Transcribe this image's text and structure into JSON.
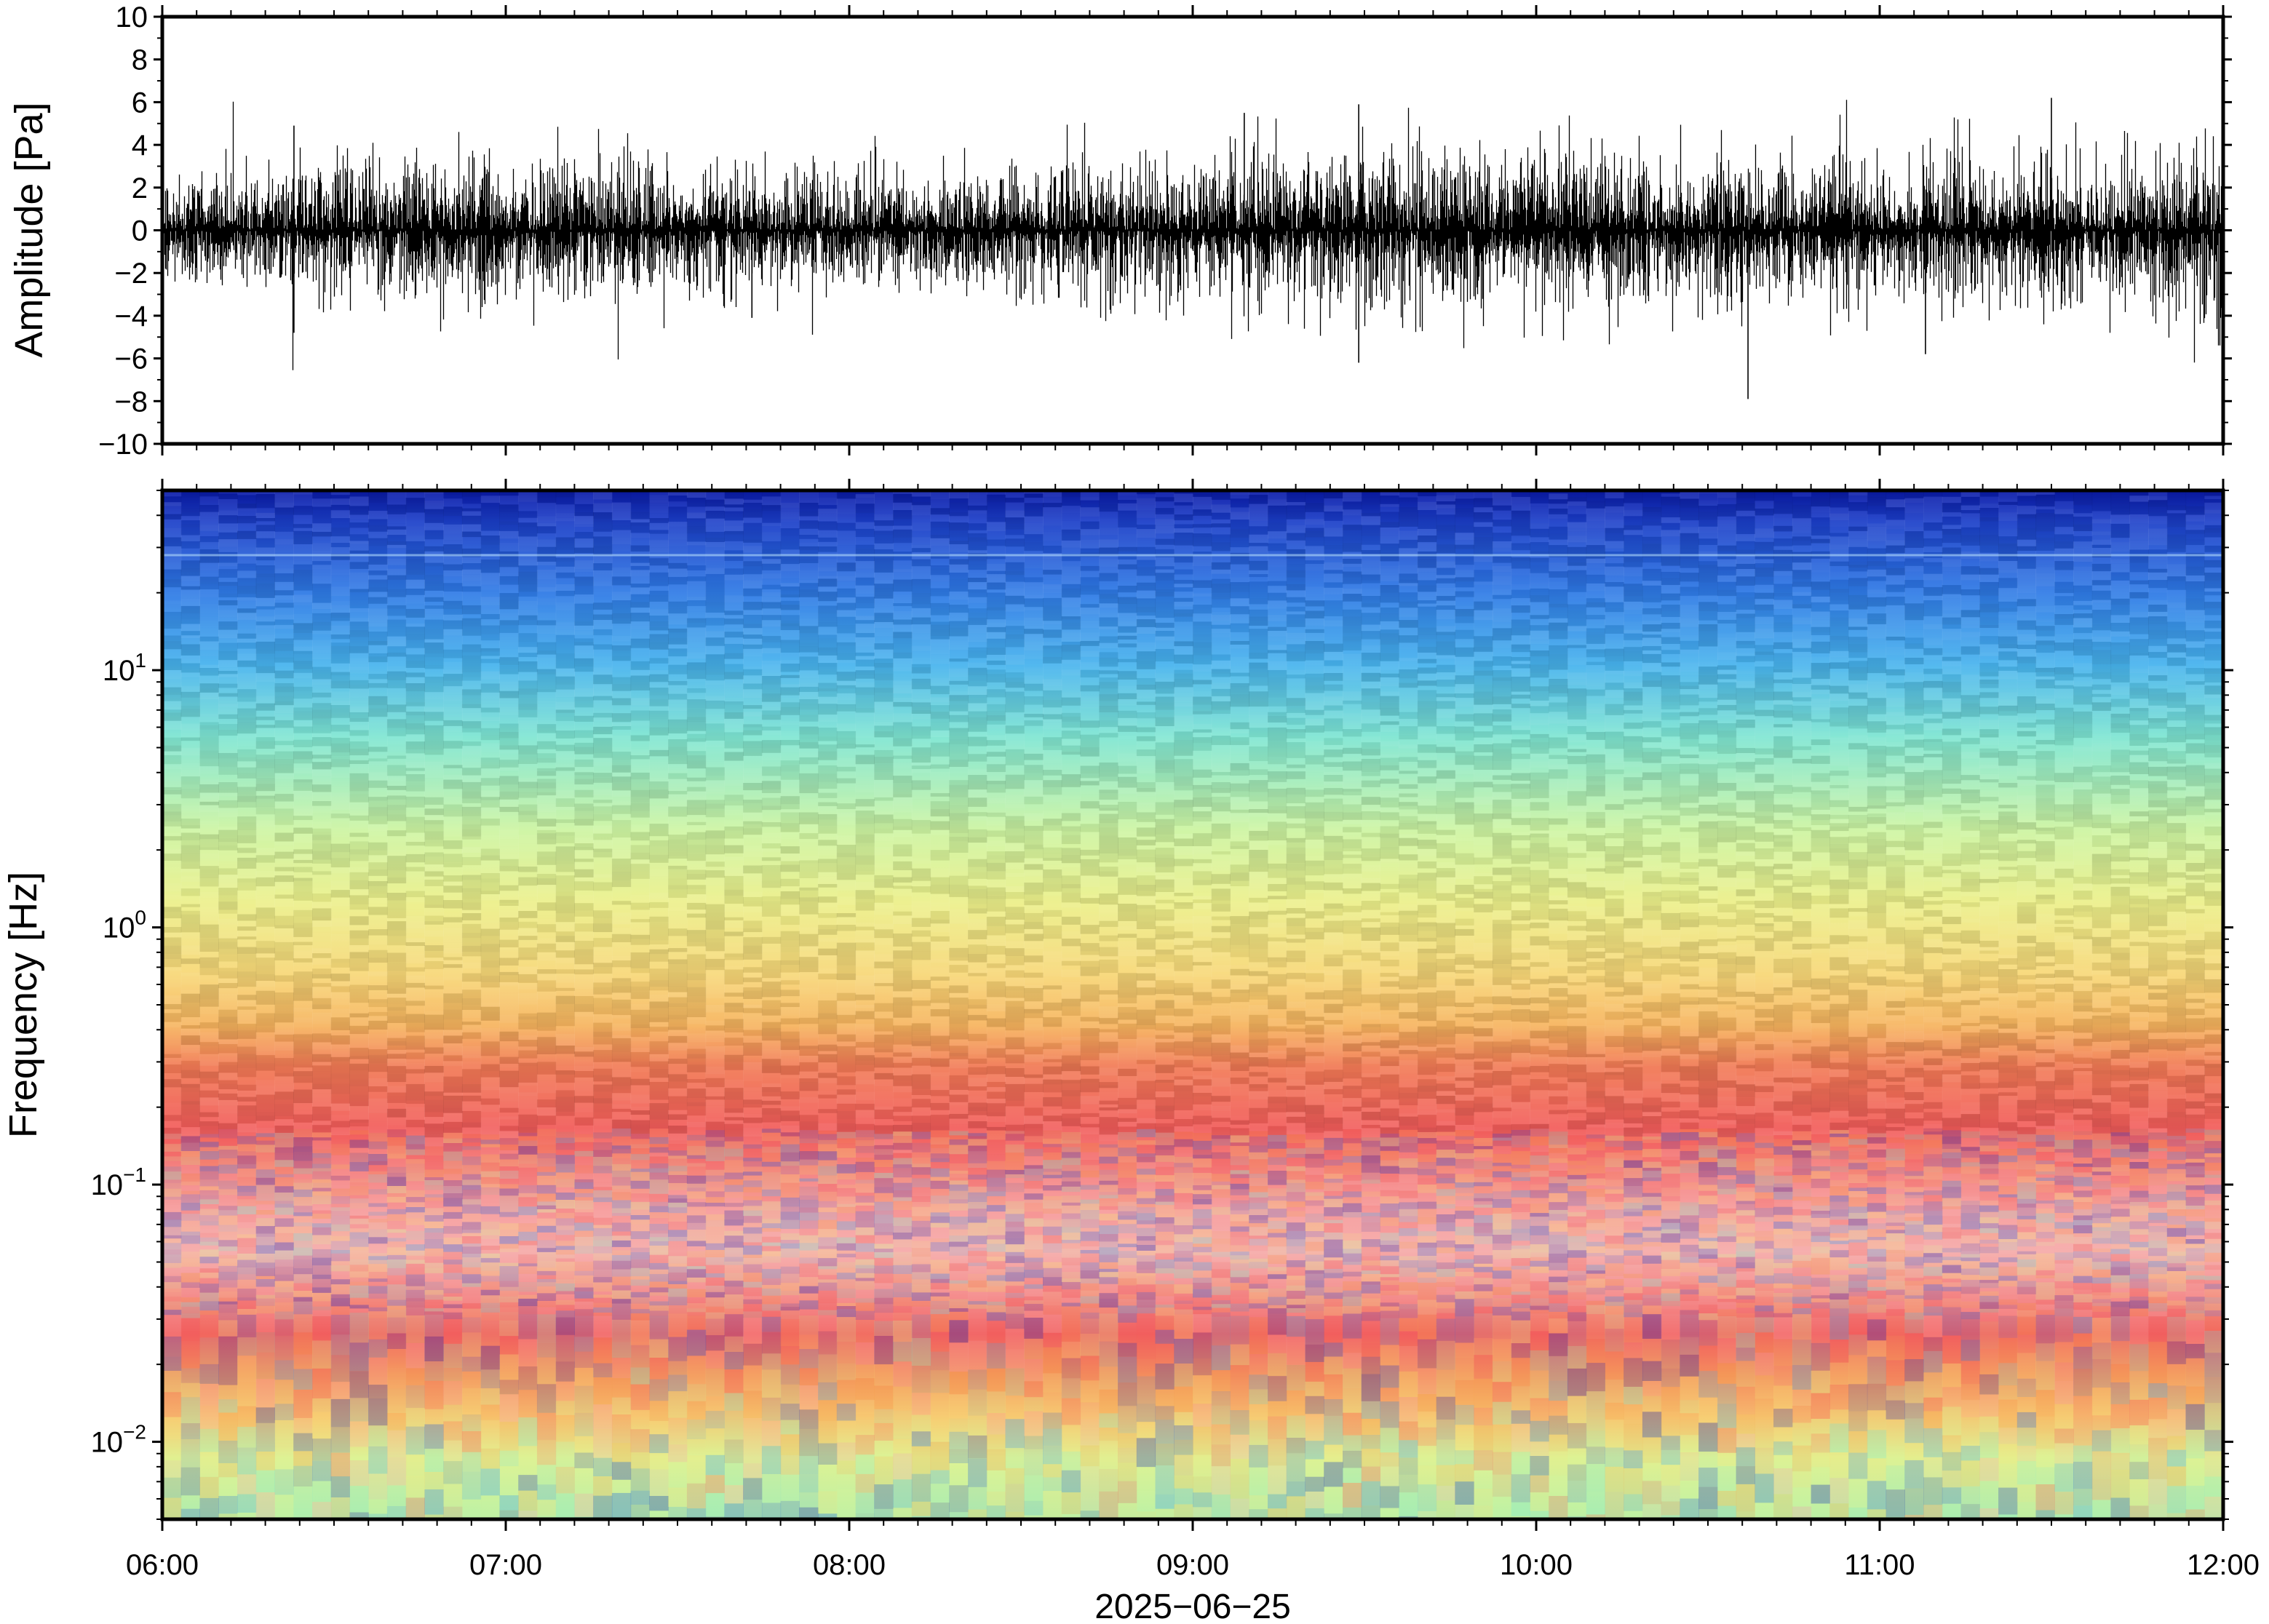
{
  "chart_data": [
    {
      "type": "line",
      "ylabel": "Amplitude [Pa]",
      "ylim": [
        -10,
        10
      ],
      "yticks": [
        10,
        8,
        6,
        4,
        2,
        0,
        -2,
        -4,
        -6,
        -8,
        -10
      ],
      "ytick_labels": [
        "10",
        "8",
        "6",
        "4",
        "2",
        "0",
        "−2",
        "−4",
        "−6",
        "−8",
        "−10"
      ],
      "xlim": [
        "06:00",
        "12:00"
      ],
      "typical_range": [
        -3,
        3
      ],
      "largest_peaks": [
        {
          "time": "06:23",
          "value": 4.9
        },
        {
          "time": "06:23",
          "value": -4.8
        },
        {
          "time": "07:43",
          "value": -4.1
        },
        {
          "time": "09:09",
          "value": 5.5
        },
        {
          "time": "09:29",
          "value": 5.9
        },
        {
          "time": "09:29",
          "value": -6.2
        },
        {
          "time": "10:37",
          "value": -7.9
        },
        {
          "time": "11:30",
          "value": 6.2
        },
        {
          "time": "11:08",
          "value": -5.8
        },
        {
          "time": "12:00",
          "value": -5.8
        }
      ],
      "grid": false,
      "color": "#000000"
    },
    {
      "type": "heatmap",
      "ylabel": "Frequency [Hz]",
      "yscale": "log",
      "ylim": [
        0.005,
        50
      ],
      "yticks": [
        10,
        1,
        0.1,
        0.01
      ],
      "ytick_labels": [
        {
          "base": "10",
          "exp": "1"
        },
        {
          "base": "10",
          "exp": "0"
        },
        {
          "base": "10",
          "exp": "−1"
        },
        {
          "base": "10",
          "exp": "−2"
        }
      ],
      "xlim": [
        "06:00",
        "12:00"
      ],
      "xticks": [
        "06:00",
        "07:00",
        "08:00",
        "09:00",
        "10:00",
        "11:00",
        "12:00"
      ],
      "xlabel": "2025−06−25",
      "colormap": [
        "#0a1fb8",
        "#1e5fe0",
        "#3aa0ee",
        "#7de8d0",
        "#d8f598",
        "#f7e27a",
        "#f6a04a",
        "#f25a58",
        "#f8a8a8"
      ],
      "grid": false
    }
  ]
}
